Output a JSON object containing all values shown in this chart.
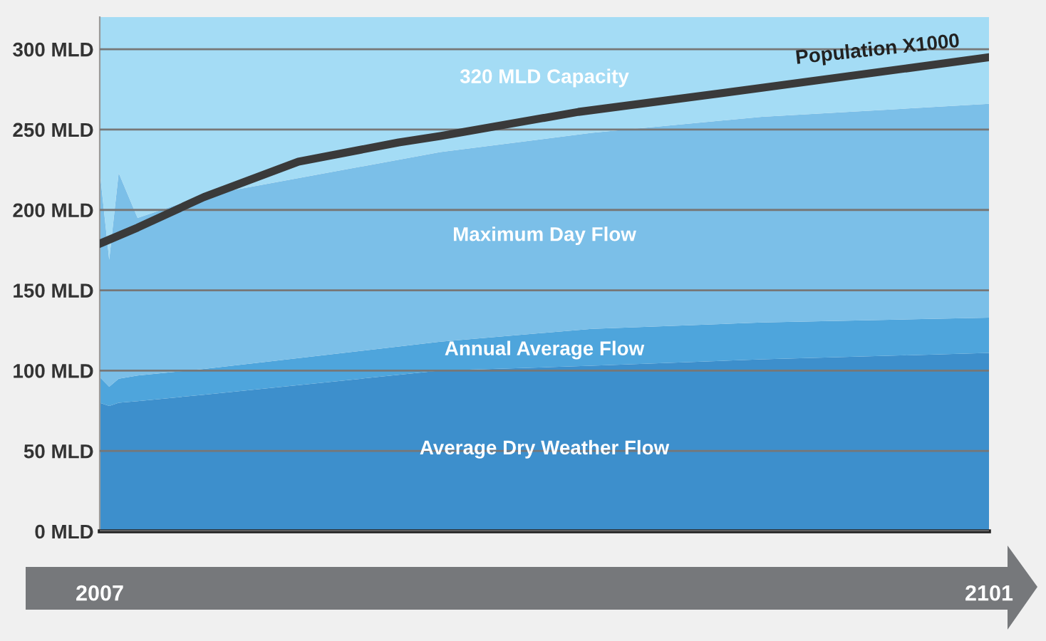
{
  "chart_data": {
    "type": "area",
    "stacked": true,
    "x": [
      2007,
      2008,
      2009,
      2011,
      2018,
      2043,
      2059,
      2077,
      2101
    ],
    "series": [
      {
        "name": "Average Dry Weather Flow",
        "color": "#3d8fcc",
        "values": [
          80,
          78,
          80,
          81,
          85,
          100,
          103,
          107,
          111
        ]
      },
      {
        "name": "Annual Average Flow",
        "color": "#4ea5dc",
        "values": [
          16,
          12,
          15,
          16,
          16,
          18,
          23,
          23,
          22
        ]
      },
      {
        "name": "Maximum Day Flow",
        "color": "#7bbfe8",
        "values": [
          128,
          79,
          128,
          98,
          108,
          118,
          122,
          128,
          133
        ]
      },
      {
        "name": "320 MLD Capacity",
        "color": "#a4dcf5",
        "values": [
          96,
          151,
          97,
          125,
          111,
          84,
          72,
          62,
          54
        ]
      },
      {
        "name": "Population X1000",
        "type": "line",
        "color": "#3a3a3a",
        "x": [
          2007,
          2011,
          2018,
          2028,
          2038.6,
          2043,
          2057.6,
          2077,
          2101
        ],
        "values": [
          179,
          189,
          208,
          230,
          242,
          246,
          261,
          276,
          295
        ]
      }
    ],
    "xlim": [
      2007,
      2101
    ],
    "xticks": [
      2007,
      2101
    ],
    "ylim": [
      0,
      320
    ],
    "yticks": [
      {
        "value": 0,
        "label": "0 MLD"
      },
      {
        "value": 50,
        "label": "50 MLD"
      },
      {
        "value": 100,
        "label": "100 MLD"
      },
      {
        "value": 150,
        "label": "150 MLD"
      },
      {
        "value": 200,
        "label": "200 MLD"
      },
      {
        "value": 250,
        "label": "250 MLD"
      },
      {
        "value": 300,
        "label": "300 MLD"
      }
    ],
    "grid": "y",
    "legend": false
  }
}
